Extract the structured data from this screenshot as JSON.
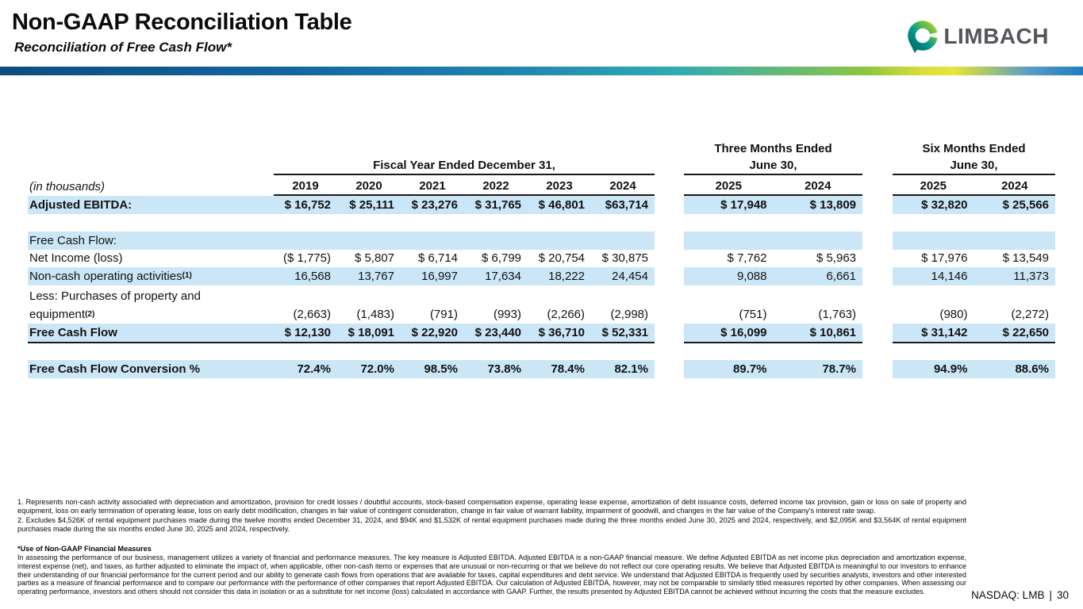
{
  "header": {
    "title": "Non-GAAP Reconciliation Table",
    "subtitle": "Reconciliation of Free Cash Flow*",
    "logo": {
      "text": "LIMBACH"
    }
  },
  "table": {
    "units_label": "(in thousands)",
    "groups": {
      "fiscal": {
        "line1": "",
        "line2": "Fiscal Year Ended December 31,"
      },
      "three_months": {
        "line1": "Three Months Ended",
        "line2": "June 30,"
      },
      "six_months": {
        "line1": "Six Months Ended",
        "line2": "June 30,"
      }
    },
    "year_headers": [
      "2019",
      "2020",
      "2021",
      "2022",
      "2023",
      "2024",
      "2025",
      "2024",
      "2025",
      "2024"
    ],
    "rows": [
      {
        "label": "Adjusted EBITDA:",
        "bold": true,
        "shade": true,
        "values": [
          "$ 16,752",
          "$ 25,111",
          "$ 23,276",
          "$ 31,765",
          "$ 46,801",
          "$63,714",
          "$ 17,948",
          "$ 13,809",
          "$ 32,820",
          "$ 25,566"
        ]
      },
      {
        "label": "",
        "values": [
          "",
          "",
          "",
          "",
          "",
          "",
          "",
          "",
          "",
          ""
        ]
      },
      {
        "label": "Free Cash Flow:",
        "shade": true,
        "values": [
          "",
          "",
          "",
          "",
          "",
          "",
          "",
          "",
          "",
          ""
        ]
      },
      {
        "label": "Net Income (loss)",
        "values": [
          "($ 1,775)",
          "$ 5,807",
          "$ 6,714",
          "$ 6,799",
          "$ 20,754",
          "$ 30,875",
          "$ 7,762",
          "$ 5,963",
          "$ 17,976",
          "$ 13,549"
        ]
      },
      {
        "label": "Non-cash operating activities",
        "sup": "(1)",
        "shade": true,
        "values": [
          "16,568",
          "13,767",
          "16,997",
          "17,634",
          "18,222",
          "24,454",
          "9,088",
          "6,661",
          "14,146",
          "11,373"
        ]
      },
      {
        "label": "Less: Purchases of property and",
        "tall": true,
        "values": [
          "",
          "",
          "",
          "",
          "",
          "",
          "",
          "",
          "",
          ""
        ]
      },
      {
        "label": "equipment",
        "sup": "(2)",
        "rule_below": true,
        "values": [
          "(2,663)",
          "(1,483)",
          "(791)",
          "(993)",
          "(2,266)",
          "(2,998)",
          "(751)",
          "(1,763)",
          "(980)",
          "(2,272)"
        ]
      },
      {
        "label": "Free Cash Flow",
        "bold": true,
        "shade": true,
        "rule_below": true,
        "values": [
          "$ 12,130",
          "$ 18,091",
          "$ 22,920",
          "$ 23,440",
          "$ 36,710",
          "$ 52,331",
          "$ 16,099",
          "$ 10,861",
          "$ 31,142",
          "$ 22,650"
        ]
      },
      {
        "label": "",
        "values": [
          "",
          "",
          "",
          "",
          "",
          "",
          "",
          "",
          "",
          ""
        ]
      },
      {
        "label": "Free Cash Flow Conversion %",
        "bold": true,
        "shade": true,
        "values": [
          "72.4%",
          "72.0%",
          "98.5%",
          "73.8%",
          "78.4%",
          "82.1%",
          "89.7%",
          "78.7%",
          "94.9%",
          "88.6%"
        ]
      }
    ]
  },
  "footnotes": {
    "note1": "1. Represents non-cash activity associated with depreciation and amortization, provision for credit losses / doubtful accounts, stock-based compensation expense, operating lease expense, amortization of debt issuance costs, deferred income tax provision, gain or loss on sale of property and equipment, loss on early termination of operating lease, loss on early debt modification, changes in fair value of contingent consideration, change in fair value of warrant liability, impairment of goodwill, and changes in the fair value of the Company's interest rate swap.",
    "note2": "2. Excludes $4,526K of rental equipment purchases made during the twelve months ended December 31, 2024, and $94K and $1,532K of rental equipment purchases made during the three months ended June 30, 2025 and 2024, respectively, and $2,095K and $3,564K of rental equipment purchases made during the six months ended June 30, 2025 and 2024, respectively.",
    "use_title": "*Use of Non-GAAP Financial Measures",
    "use_body": "In assessing the performance of our business, management utilizes a variety of financial and performance measures. The key measure is Adjusted EBITDA. Adjusted EBITDA is a non-GAAP financial measure. We define Adjusted EBITDA as net income plus depreciation and amortization expense, interest expense (net), and taxes, as further adjusted to eliminate the impact of, when applicable, other non-cash items or expenses that are unusual or non-recurring or that we believe do not reflect our core operating results. We believe that Adjusted EBITDA is meaningful to our investors to enhance their understanding of our financial performance for the current period and our ability to generate cash flows from operations that are available for taxes, capital expenditures and debt service. We understand that Adjusted EBITDA is frequently used by securities analysts, investors and other interested parties as a measure of financial performance and to compare our performance with the performance of other companies that report Adjusted EBITDA. Our calculation of Adjusted EBITDA, however, may not be comparable to similarly titled measures reported by other companies. When assessing our operating performance, investors and others should not consider this data in isolation or as a substitute for net income (loss) calculated in accordance with GAAP. Further, the results presented by Adjusted EBITDA cannot be achieved without incurring the costs that the measure excludes."
  },
  "footer": {
    "ticker": "NASDAQ: LMB",
    "separator": "|",
    "page": "30"
  },
  "colors": {
    "row_highlight_blue": "#cbe7f7",
    "brand_gray": "#54565b",
    "logo_teal": "#00918f",
    "logo_green": "#8dc63f",
    "bar_navy": "#0e4d7f",
    "bar_teal": "#2fa9b4",
    "bar_green": "#8cc63f",
    "bar_yellow": "#e9e53b",
    "bar_end_blue": "#1f7dbe"
  }
}
